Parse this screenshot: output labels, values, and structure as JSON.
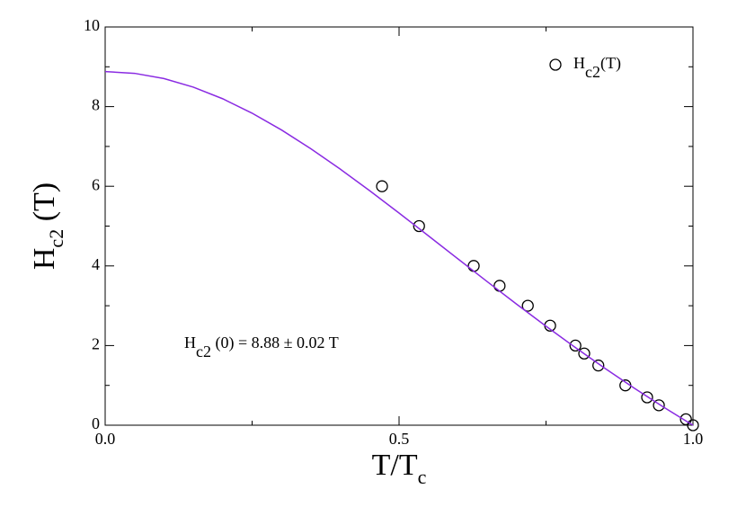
{
  "chart_data": {
    "type": "scatter",
    "xlabel": [
      "T/T",
      "c"
    ],
    "ylabel": [
      "H",
      "c2",
      " (T)"
    ],
    "annotation": [
      "H",
      "c2",
      " (0) = 8.88 ± 0.02 T"
    ],
    "xlim": [
      0,
      1
    ],
    "ylim": [
      0,
      10
    ],
    "xticks": [
      {
        "value": 0,
        "label": "0.0"
      },
      {
        "value": 0.5,
        "label": "0.5"
      },
      {
        "value": 1,
        "label": "1.0"
      }
    ],
    "yticks": [
      0,
      2,
      4,
      6,
      8,
      10
    ],
    "xminorticks": [
      0.25,
      0.75
    ],
    "yminorticks": [
      1,
      3,
      5,
      7,
      9
    ],
    "series": [
      {
        "name": [
          "H",
          "c2",
          "(T)"
        ],
        "kind": "scatter",
        "color": "#000000",
        "x": [
          0.471,
          0.534,
          0.627,
          0.671,
          0.719,
          0.757,
          0.8,
          0.815,
          0.839,
          0.885,
          0.922,
          0.942,
          0.988,
          1.0
        ],
        "values": [
          6.0,
          5.0,
          4.0,
          3.5,
          3.0,
          2.5,
          2.0,
          1.8,
          1.5,
          1.0,
          0.7,
          0.5,
          0.15,
          0.0
        ]
      },
      {
        "kind": "line",
        "color": "#8a2be2",
        "x": [
          0,
          0.05,
          0.1,
          0.15,
          0.2,
          0.25,
          0.3,
          0.35,
          0.4,
          0.45,
          0.5,
          0.55,
          0.6,
          0.65,
          0.7,
          0.75,
          0.8,
          0.85,
          0.9,
          0.95,
          1.0
        ],
        "values": [
          8.88,
          8.836,
          8.704,
          8.489,
          8.197,
          7.835,
          7.414,
          6.942,
          6.43,
          5.889,
          5.328,
          4.755,
          4.179,
          3.605,
          3.039,
          2.486,
          1.949,
          1.431,
          0.932,
          0.455,
          0
        ]
      }
    ]
  }
}
